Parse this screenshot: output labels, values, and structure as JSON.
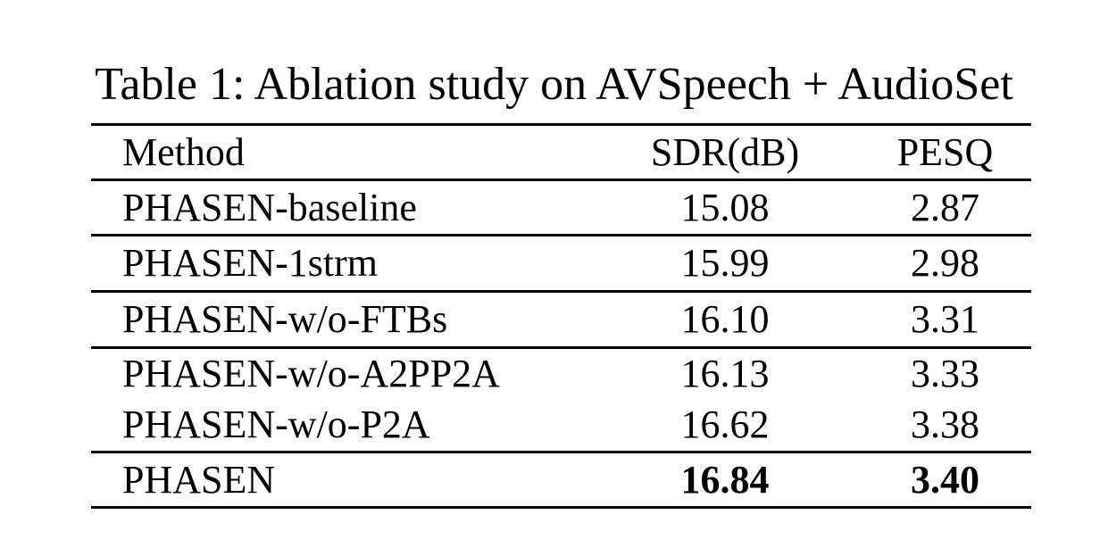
{
  "caption": "Table 1: Ablation study on AVSpeech + AudioSet",
  "table": {
    "columns": [
      "Method",
      "SDR(dB)",
      "PESQ"
    ],
    "rows": [
      {
        "method": "PHASEN-baseline",
        "sdr": "15.08",
        "pesq": "2.87",
        "bold": false
      },
      {
        "method": "PHASEN-1strm",
        "sdr": "15.99",
        "pesq": "2.98",
        "bold": false
      },
      {
        "method": "PHASEN-w/o-FTBs",
        "sdr": "16.10",
        "pesq": "3.31",
        "bold": false
      },
      {
        "method": "PHASEN-w/o-A2PP2A",
        "sdr": "16.13",
        "pesq": "3.33",
        "bold": false
      },
      {
        "method": "PHASEN-w/o-P2A",
        "sdr": "16.62",
        "pesq": "3.38",
        "bold": false
      },
      {
        "method": "PHASEN",
        "sdr": "16.84",
        "pesq": "3.40",
        "bold": true
      }
    ]
  },
  "colors": {
    "text": "#000000",
    "background": "#ffffff",
    "rule": "#000000"
  },
  "chart_data": {
    "type": "table",
    "title": "Table 1: Ablation study on AVSpeech + AudioSet",
    "columns": [
      "Method",
      "SDR(dB)",
      "PESQ"
    ],
    "series": [
      {
        "name": "SDR(dB)",
        "values": [
          15.08,
          15.99,
          16.1,
          16.13,
          16.62,
          16.84
        ]
      },
      {
        "name": "PESQ",
        "values": [
          2.87,
          2.98,
          3.31,
          3.33,
          3.38,
          3.4
        ]
      }
    ],
    "categories": [
      "PHASEN-baseline",
      "PHASEN-1strm",
      "PHASEN-w/o-FTBs",
      "PHASEN-w/o-A2PP2A",
      "PHASEN-w/o-P2A",
      "PHASEN"
    ],
    "best_row": "PHASEN"
  }
}
